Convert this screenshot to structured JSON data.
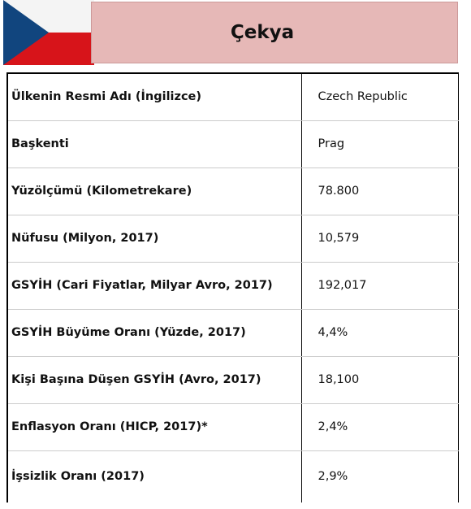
{
  "header": {
    "title": "Çekya"
  },
  "table": {
    "rows": [
      [
        "Ülkenin Resmi Adı (İngilizce)",
        "Czech Republic"
      ],
      [
        "Başkenti",
        "Prag"
      ],
      [
        "Yüzölçümü (Kilometrekare)",
        "78.800"
      ],
      [
        "Nüfusu (Milyon, 2017)",
        "10,579"
      ],
      [
        "GSYİH (Cari Fiyatlar, Milyar Avro, 2017)",
        "192,017"
      ],
      [
        "GSYİH Büyüme Oranı (Yüzde, 2017)",
        "4,4%"
      ],
      [
        "Kişi Başına Düşen GSYİH (Avro, 2017)",
        "18,100"
      ],
      [
        "Enflasyon Oranı (HICP, 2017)*",
        "2,4%"
      ],
      [
        "İşsizlik Oranı (2017)",
        "2,9%"
      ]
    ]
  }
}
